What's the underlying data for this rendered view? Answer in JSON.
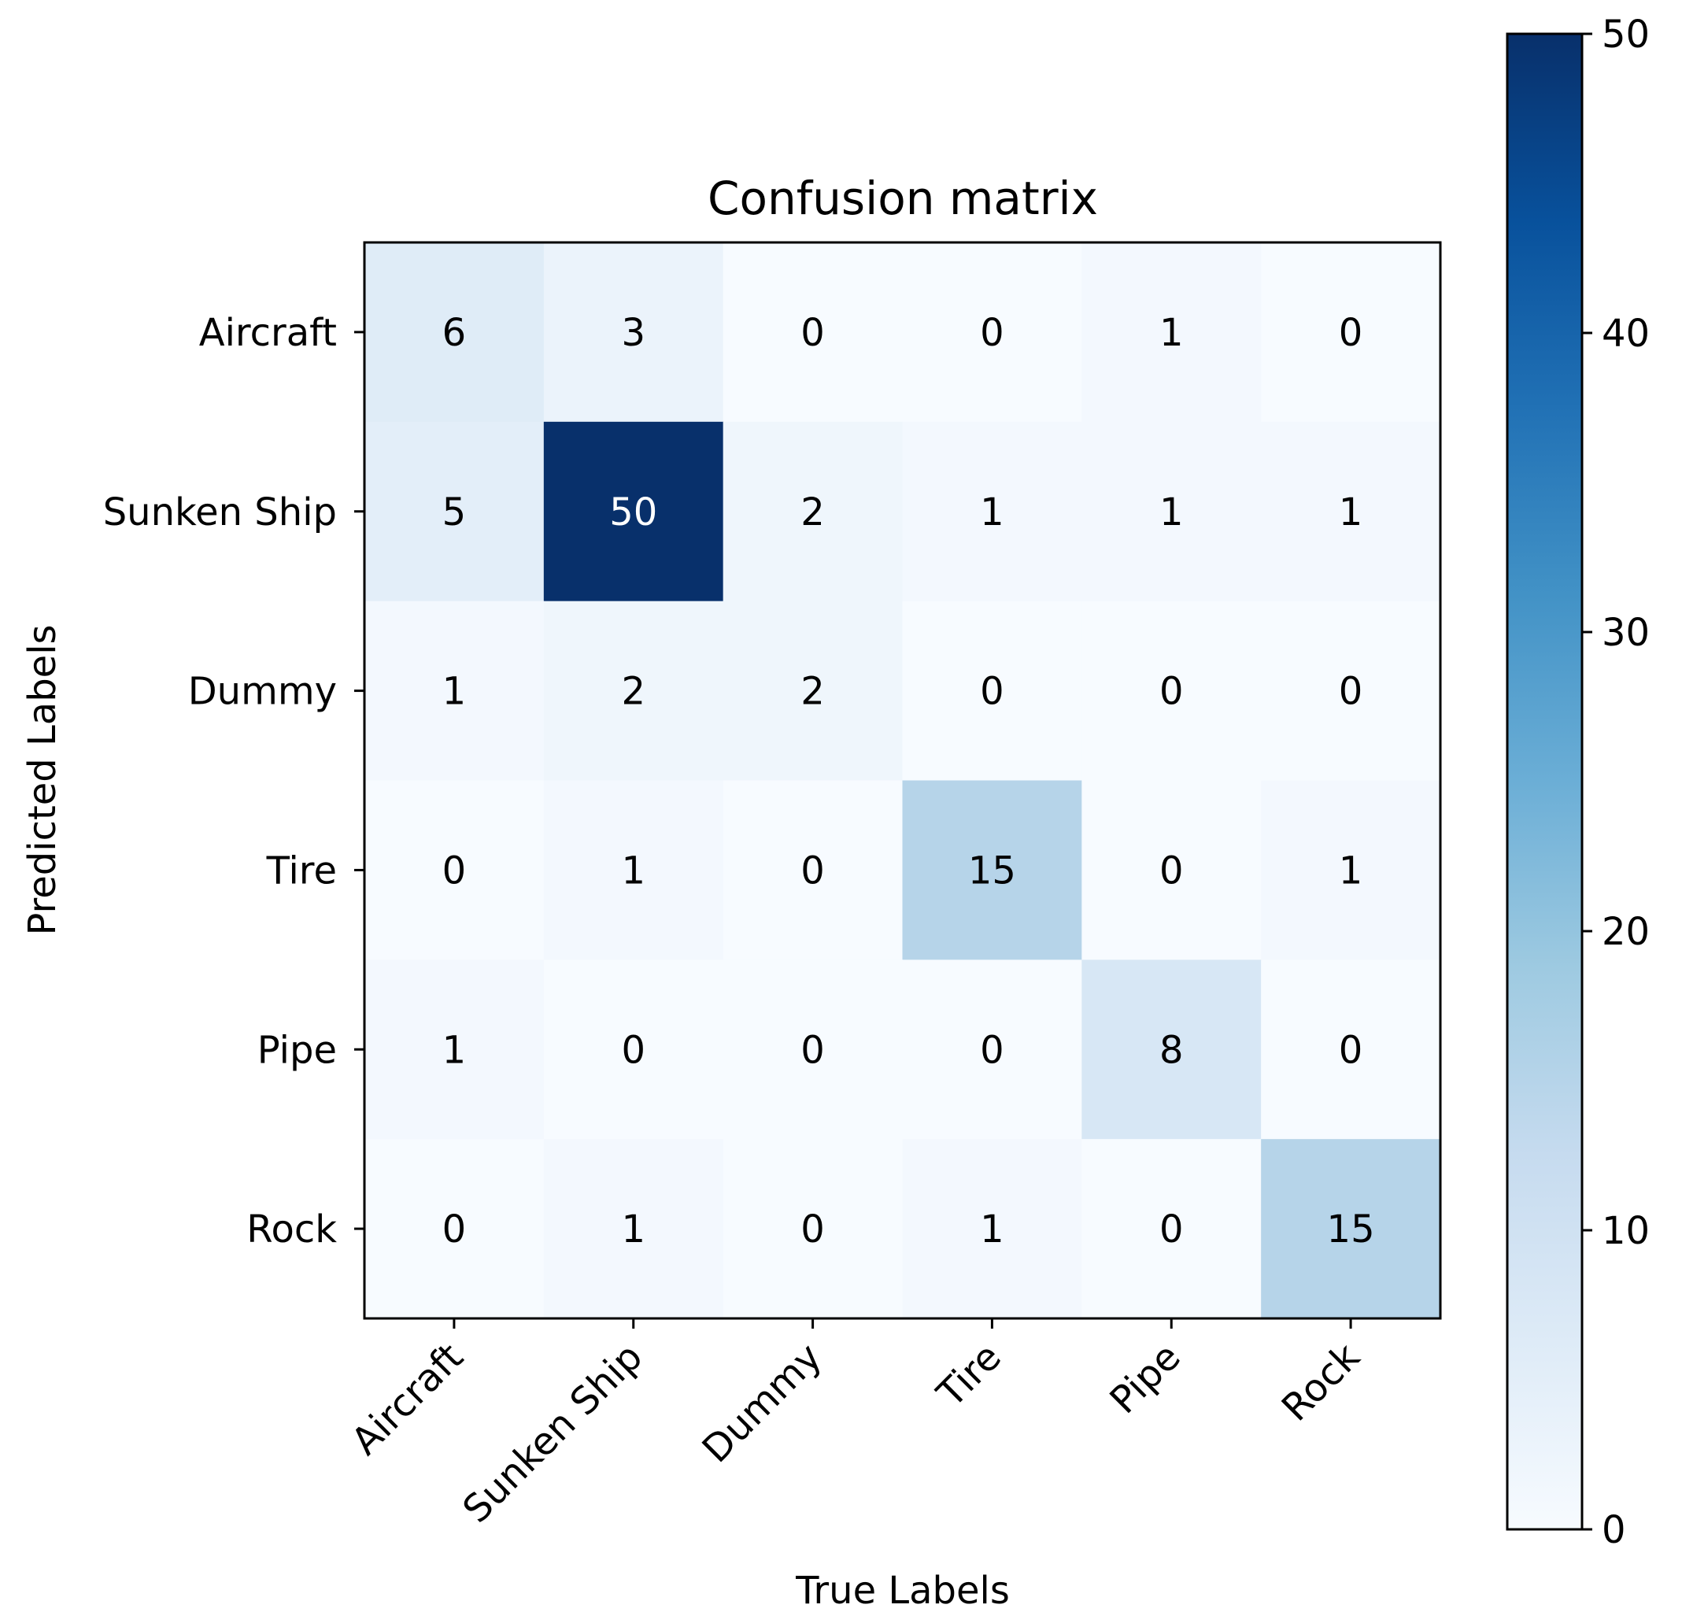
{
  "chart_data": {
    "type": "heatmap",
    "title": "Confusion matrix",
    "xlabel": "True Labels",
    "ylabel": "Predicted Labels",
    "x_categories": [
      "Aircraft",
      "Sunken Ship",
      "Dummy",
      "Tire",
      "Pipe",
      "Rock"
    ],
    "y_categories": [
      "Aircraft",
      "Sunken Ship",
      "Dummy",
      "Tire",
      "Pipe",
      "Rock"
    ],
    "values": [
      [
        6,
        3,
        0,
        0,
        1,
        0
      ],
      [
        5,
        50,
        2,
        1,
        1,
        1
      ],
      [
        1,
        2,
        2,
        0,
        0,
        0
      ],
      [
        0,
        1,
        0,
        15,
        0,
        1
      ],
      [
        1,
        0,
        0,
        0,
        8,
        0
      ],
      [
        0,
        1,
        0,
        1,
        0,
        15
      ]
    ],
    "colormap": "Blues",
    "colorbar": {
      "range": [
        0,
        50
      ],
      "ticks": [
        0,
        10,
        20,
        30,
        40,
        50
      ]
    },
    "x_tick_rotation": 45,
    "grid": false
  }
}
